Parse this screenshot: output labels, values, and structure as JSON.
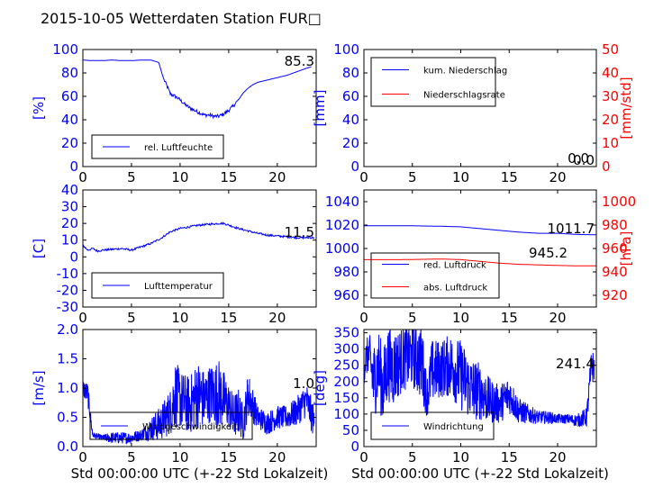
{
  "title": "2015-10-05 Wetterdaten Station FUR□",
  "colors": {
    "left_axis": "#0000ff",
    "right_axis": "#ff0000",
    "frame": "#000000",
    "legend_border": "#000000"
  },
  "chart_data": [
    {
      "type": "line",
      "name": "humidity-panel",
      "xlim": [
        0,
        24
      ],
      "xticks": [
        0,
        5,
        10,
        15,
        20
      ],
      "ylim": [
        0,
        100
      ],
      "yticks": [
        0,
        20,
        40,
        60,
        80,
        100
      ],
      "ylabel": "[%]",
      "last_value_label": "85.3",
      "series": [
        {
          "name": "rel. Luftfeuchte",
          "color": "#0000ff",
          "x": [
            0,
            1,
            2,
            3,
            4,
            5,
            6,
            7,
            7.8,
            8.3,
            8.7,
            9.0,
            9.5,
            10,
            10.5,
            11,
            11.5,
            12,
            12.5,
            13,
            13.5,
            14,
            14.5,
            15,
            15.5,
            16,
            16.5,
            17,
            17.5,
            18,
            19,
            20,
            21,
            22,
            23,
            23.5
          ],
          "y": [
            91,
            90.5,
            90.5,
            91,
            90.5,
            90.5,
            91,
            91,
            89,
            75,
            68,
            62,
            60,
            57,
            53,
            50,
            48,
            46,
            44,
            44,
            43,
            43,
            45,
            48,
            52,
            57,
            63,
            67,
            70,
            72,
            74,
            76,
            78,
            81,
            84,
            85.3
          ]
        }
      ],
      "legend": {
        "position": "lower-left",
        "entries": [
          "rel. Luftfeuchte"
        ]
      }
    },
    {
      "type": "line",
      "name": "precipitation-panel",
      "xlim": [
        0,
        24
      ],
      "xticks": [
        0,
        5,
        10,
        15,
        20
      ],
      "ylim": [
        0,
        100
      ],
      "yticks": [
        0,
        20,
        40,
        60,
        80,
        100
      ],
      "ylabel": "[mm]",
      "y2lim": [
        0,
        50
      ],
      "y2ticks": [
        0,
        10,
        20,
        30,
        40,
        50
      ],
      "y2label": "[mm/std]",
      "last_value_label": "0.0",
      "last_value_label_2": "0.0",
      "series": [
        {
          "name": "kum. Niederschlag",
          "color": "#0000ff",
          "axis": "left",
          "x": [
            0,
            24
          ],
          "y": [
            0,
            0
          ]
        },
        {
          "name": "Niederschlagsrate",
          "color": "#ff0000",
          "axis": "right",
          "x": [
            0,
            24
          ],
          "y": [
            0,
            0
          ]
        }
      ],
      "legend": {
        "position": "upper-left",
        "entries": [
          "kum. Niederschlag",
          "Niederschlagsrate"
        ]
      }
    },
    {
      "type": "line",
      "name": "temperature-panel",
      "xlim": [
        0,
        24
      ],
      "xticks": [
        0,
        5,
        10,
        15,
        20
      ],
      "ylim": [
        -30,
        40
      ],
      "yticks": [
        -30,
        -20,
        -10,
        0,
        10,
        20,
        30,
        40
      ],
      "ylabel": "[C]",
      "last_value_label": "11.5",
      "series": [
        {
          "name": "Lufttemperatur",
          "color": "#0000ff",
          "x": [
            0,
            0.5,
            1,
            1.5,
            2,
            3,
            4,
            5,
            6,
            7,
            8,
            9,
            10,
            11,
            12,
            13,
            14,
            14.5,
            15,
            16,
            17,
            18,
            19,
            20,
            21,
            22,
            23,
            23.8
          ],
          "y": [
            7,
            4,
            5,
            3.5,
            4,
            4.5,
            5,
            4,
            6,
            8,
            11,
            15,
            17,
            18,
            19,
            19.5,
            20,
            20,
            19,
            17,
            15.5,
            14,
            13,
            12.5,
            12,
            11.5,
            11.5,
            11.5
          ]
        }
      ],
      "legend": {
        "position": "lower-left",
        "entries": [
          "Lufttemperatur"
        ]
      }
    },
    {
      "type": "line",
      "name": "pressure-panel",
      "xlim": [
        0,
        24
      ],
      "xticks": [
        0,
        5,
        10,
        15,
        20
      ],
      "ylim": [
        950,
        1050
      ],
      "yticks": [
        960,
        980,
        1000,
        1020,
        1040
      ],
      "y2lim": [
        910,
        1010
      ],
      "y2ticks": [
        920,
        940,
        960,
        980,
        1000
      ],
      "y2label": "[hPa]",
      "last_value_label": "1011.7",
      "last_value_label_2": "945.2",
      "series": [
        {
          "name": "red. Luftdruck",
          "color": "#0000ff",
          "axis": "left",
          "x": [
            0,
            4,
            8,
            10,
            12,
            14,
            16,
            18,
            20,
            22,
            24
          ],
          "y": [
            1019.5,
            1019.5,
            1019,
            1018.5,
            1017,
            1015.5,
            1014,
            1013,
            1013,
            1012,
            1011.7
          ]
        },
        {
          "name": "abs. Luftdruck",
          "color": "#ff0000",
          "axis": "right",
          "x": [
            0,
            4,
            8,
            10,
            12,
            14,
            16,
            18,
            20,
            22,
            24
          ],
          "y": [
            950.5,
            950.5,
            951,
            950.5,
            949,
            947.5,
            946.5,
            946,
            945.5,
            945.2,
            945.2
          ]
        }
      ],
      "legend": {
        "position": "lower-left",
        "entries": [
          "red. Luftdruck",
          "abs. Luftdruck"
        ]
      }
    },
    {
      "type": "line",
      "name": "wind-speed-panel",
      "xlim": [
        0,
        24
      ],
      "xticks": [
        0,
        5,
        10,
        15,
        20
      ],
      "ylim": [
        0,
        2.0
      ],
      "yticks": [
        "0.0",
        "0.5",
        "1.0",
        "1.5",
        "2.0"
      ],
      "ylabel": "[m/s]",
      "xlabel": "Std 00:00:00 UTC (+-22 Std Lokalzeit)",
      "last_value_label": "1.0",
      "series": [
        {
          "name": "Windgeschwindigkeit",
          "color": "#0000ff",
          "noisy": true,
          "x": [
            0,
            0.5,
            1,
            2,
            3,
            4,
            5,
            6,
            7,
            8,
            9,
            9.5,
            10,
            11,
            11.8,
            12.5,
            13,
            14,
            15,
            15.5,
            16,
            16.5,
            17,
            18,
            19,
            20,
            21,
            22,
            23,
            23.8
          ],
          "y": [
            1.0,
            0.9,
            0.2,
            0.15,
            0.15,
            0.15,
            0.15,
            0.2,
            0.3,
            0.4,
            0.6,
            0.9,
            0.8,
            0.7,
            0.9,
            0.8,
            0.9,
            0.9,
            0.7,
            0.5,
            0.6,
            0.4,
            0.9,
            0.5,
            0.4,
            0.5,
            0.5,
            0.6,
            0.8,
            0.4
          ],
          "amp": [
            0.15,
            0.2,
            0.05,
            0.05,
            0.1,
            0.1,
            0.1,
            0.1,
            0.2,
            0.3,
            0.4,
            0.6,
            0.5,
            0.5,
            0.6,
            0.5,
            0.5,
            0.6,
            0.4,
            0.4,
            0.4,
            0.3,
            0.4,
            0.2,
            0.2,
            0.2,
            0.2,
            0.25,
            0.3,
            0.3
          ]
        }
      ],
      "legend": {
        "position": "lower-center",
        "entries": [
          "Windgeschwindigkeit"
        ]
      }
    },
    {
      "type": "line",
      "name": "wind-direction-panel",
      "xlim": [
        0,
        24
      ],
      "xticks": [
        0,
        5,
        10,
        15,
        20
      ],
      "ylim": [
        0,
        360
      ],
      "yticks": [
        0,
        50,
        100,
        150,
        200,
        250,
        300,
        350
      ],
      "ylabel": "[deg]",
      "xlabel": "Std 00:00:00 UTC (+-22 Std Lokalzeit)",
      "last_value_label": "241.4",
      "series": [
        {
          "name": "Windrichtung",
          "color": "#0000ff",
          "noisy": true,
          "x": [
            0,
            0.5,
            1,
            1.5,
            2,
            2.5,
            3,
            4,
            5,
            6,
            6.5,
            7,
            8,
            9,
            10,
            11,
            12,
            13,
            14,
            15,
            16,
            17,
            18,
            19,
            20,
            21,
            22,
            23,
            23.5,
            23.8
          ],
          "y": [
            250,
            290,
            200,
            250,
            180,
            260,
            240,
            270,
            280,
            260,
            150,
            230,
            240,
            250,
            220,
            180,
            170,
            140,
            130,
            160,
            110,
            100,
            90,
            90,
            85,
            85,
            80,
            90,
            250,
            241.4
          ],
          "amp": [
            60,
            60,
            120,
            120,
            120,
            120,
            120,
            100,
            100,
            120,
            60,
            100,
            90,
            100,
            110,
            100,
            90,
            70,
            60,
            60,
            40,
            30,
            20,
            20,
            15,
            15,
            20,
            30,
            60,
            40
          ]
        }
      ],
      "legend": {
        "position": "lower-center",
        "entries": [
          "Windrichtung"
        ]
      }
    }
  ]
}
